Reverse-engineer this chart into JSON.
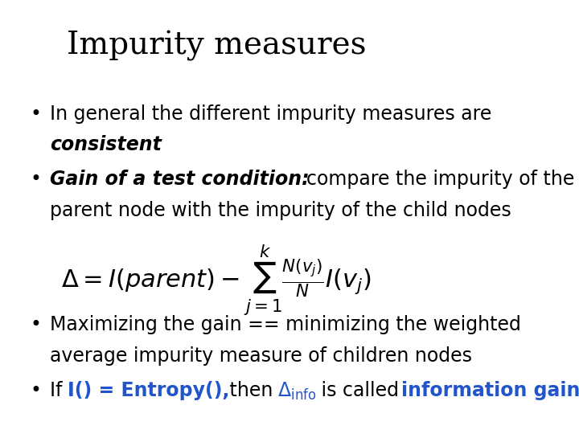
{
  "title": "Impurity measures",
  "title_fontsize": 28,
  "title_font": "DejaVu Serif",
  "background_color": "#ffffff",
  "text_color": "#000000",
  "blue_color": "#2255cc",
  "bullet1_normal": "In general the different impurity measures are ",
  "bullet1_bold": "consistent",
  "bullet2_bold": "Gain of a test condition: ",
  "bullet2_normal1": "compare the impurity of the",
  "bullet2_normal2": "parent node with the impurity of the child nodes",
  "formula": "\\Delta = I(parent) - \\sum_{j=1}^{k} \\frac{N(v_j)}{N} I(v_j)",
  "bullet3_line1": "Maximizing the gain == minimizing the weighted",
  "bullet3_line2": "average impurity measure of children nodes",
  "bullet4_prefix": "If ",
  "bullet4_blue1": "I() = Entropy(),",
  "bullet4_middle": " then ",
  "bullet4_blue2": "\\Delta_{\\mathrm{info}}",
  "bullet4_suffix": " is called ",
  "bullet4_blue3": "information gain",
  "body_fontsize": 17,
  "formula_fontsize": 20
}
